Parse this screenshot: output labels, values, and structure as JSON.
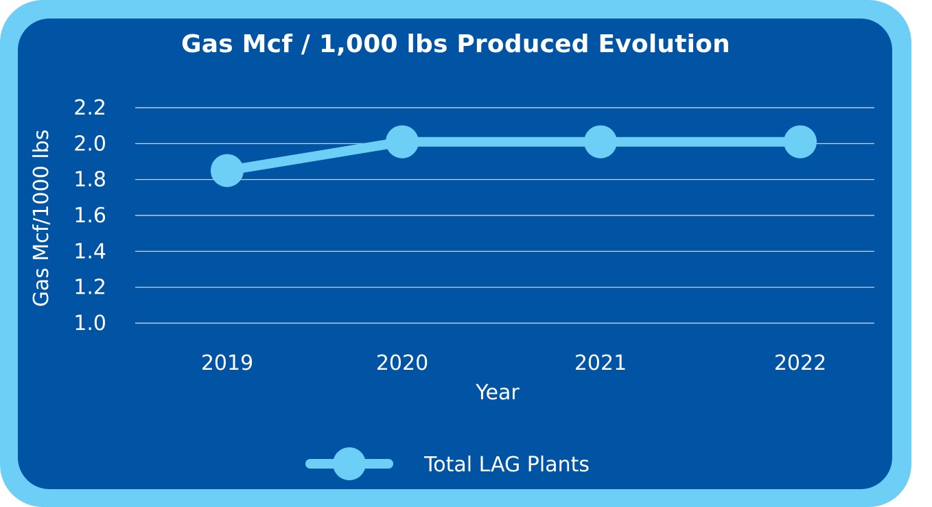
{
  "colors": {
    "frame": "#6ecff6",
    "panel": "#0054a3",
    "series": "#6ecff6",
    "gridline": "#ffffff",
    "text": "#ffffff"
  },
  "chart_data": {
    "type": "line",
    "title": "Gas Mcf / 1,000 lbs Produced Evolution",
    "xlabel": "Year",
    "ylabel": "Gas Mcf/1000 lbs",
    "categories": [
      "2019",
      "2020",
      "2021",
      "2022"
    ],
    "series": [
      {
        "name": "Total LAG Plants",
        "values": [
          1.85,
          2.01,
          2.01,
          2.01
        ]
      }
    ],
    "ylim": [
      1.0,
      2.2
    ],
    "yticks": [
      "1.0",
      "1.2",
      "1.4",
      "1.6",
      "1.8",
      "2.0",
      "2.2"
    ],
    "grid": true,
    "legend_position": "bottom"
  }
}
